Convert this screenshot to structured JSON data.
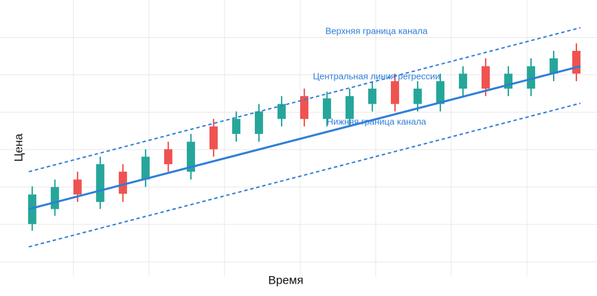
{
  "chart_data": {
    "type": "candlestick",
    "x_label": "Время",
    "y_label": "Цена",
    "x": [
      0,
      1,
      2,
      3,
      4,
      5,
      6,
      7,
      8,
      9,
      10,
      11,
      12,
      13,
      14,
      15,
      16,
      17,
      18,
      19,
      20,
      21,
      22,
      23,
      24
    ],
    "open": [
      1.01,
      1.41,
      2.2,
      1.6,
      2.41,
      2.2,
      3.01,
      2.41,
      3.62,
      3.42,
      3.42,
      3.82,
      4.43,
      3.82,
      3.82,
      4.22,
      4.83,
      4.22,
      4.22,
      4.63,
      5.23,
      4.63,
      4.63,
      5.03,
      5.64
    ],
    "high": [
      2.02,
      2.2,
      2.41,
      2.81,
      2.61,
      3.01,
      3.21,
      3.42,
      3.82,
      4.02,
      4.22,
      4.43,
      4.63,
      4.55,
      4.63,
      4.83,
      5.03,
      4.83,
      5.03,
      5.23,
      5.44,
      5.23,
      5.44,
      5.64,
      5.84
    ],
    "low": [
      0.83,
      1.23,
      1.6,
      1.41,
      1.6,
      2.0,
      2.41,
      2.2,
      2.81,
      3.21,
      3.21,
      3.62,
      3.62,
      3.62,
      3.62,
      4.02,
      4.02,
      4.02,
      4.02,
      4.43,
      4.43,
      4.43,
      4.43,
      4.83,
      4.83
    ],
    "close": [
      1.8,
      2.0,
      1.8,
      2.61,
      1.82,
      2.81,
      2.61,
      3.21,
      3.01,
      3.82,
      4.02,
      4.22,
      3.82,
      4.37,
      4.43,
      4.63,
      4.22,
      4.63,
      4.83,
      5.03,
      4.63,
      5.03,
      5.23,
      5.44,
      5.03
    ],
    "up_color": "#26a69a",
    "down_color": "#ef5350",
    "lines": [
      {
        "name": "Верхняя граница канала",
        "x": [
          -0.15,
          24.18
        ],
        "values": [
          2.41,
          6.26
        ],
        "color": "#2f7ed8",
        "dash": true
      },
      {
        "name": "Центральная линия регрессии",
        "x": [
          -0.15,
          24.18
        ],
        "values": [
          1.41,
          5.23
        ],
        "color": "#2f7ed8",
        "dash": false
      },
      {
        "name": "Нижняя граница канала",
        "x": [
          -0.15,
          24.18
        ],
        "values": [
          0.4,
          4.24
        ],
        "color": "#2f7ed8",
        "dash": true
      }
    ],
    "xlim": [
      -1.42,
      24.91
    ],
    "ylim": [
      -0.4,
      7.0
    ],
    "xticks": [
      1.82,
      5.15,
      8.48,
      11.82,
      15.15,
      18.48,
      21.82
    ],
    "yticks": [
      0,
      1,
      2,
      3,
      4,
      5,
      6
    ],
    "grid": true
  }
}
